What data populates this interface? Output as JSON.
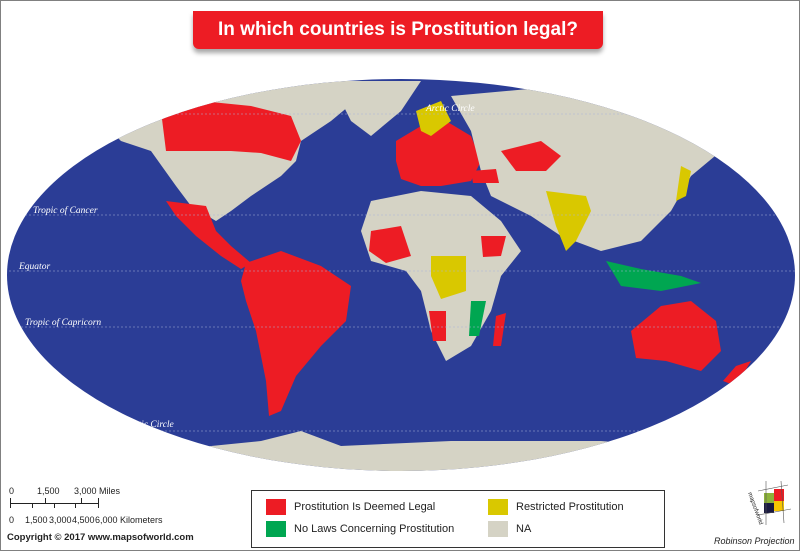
{
  "title": "In which countries is Prostitution legal?",
  "map_labels": {
    "arctic": "Arctic Circle",
    "cancer": "Tropic of Cancer",
    "equator": "Equator",
    "capricorn": "Tropic of Capricorn",
    "antarctic": "Antarctic Circle"
  },
  "scale": {
    "miles": [
      "0",
      "1,500",
      "3,000 Miles"
    ],
    "km": [
      "0",
      "1,500",
      "3,000",
      "4,500",
      "6,000 Kilometers"
    ]
  },
  "copyright": "Copyright © 2017 www.mapsofworld.com",
  "legend": [
    {
      "label": "Prostitution Is Deemed Legal",
      "color": "#ed1c24"
    },
    {
      "label": "Restricted Prostitution",
      "color": "#d9c800"
    },
    {
      "label": "No Laws Concerning Prostitution",
      "color": "#00a651"
    },
    {
      "label": "NA",
      "color": "#d5d3c5"
    }
  ],
  "colors": {
    "ocean": "#2b3d96",
    "na": "#d5d3c5",
    "legal": "#ed1c24",
    "restricted": "#d9c800",
    "nolaws": "#00a651"
  },
  "logo_text": "mapsofworld.com",
  "projection": "Robinson Projection"
}
